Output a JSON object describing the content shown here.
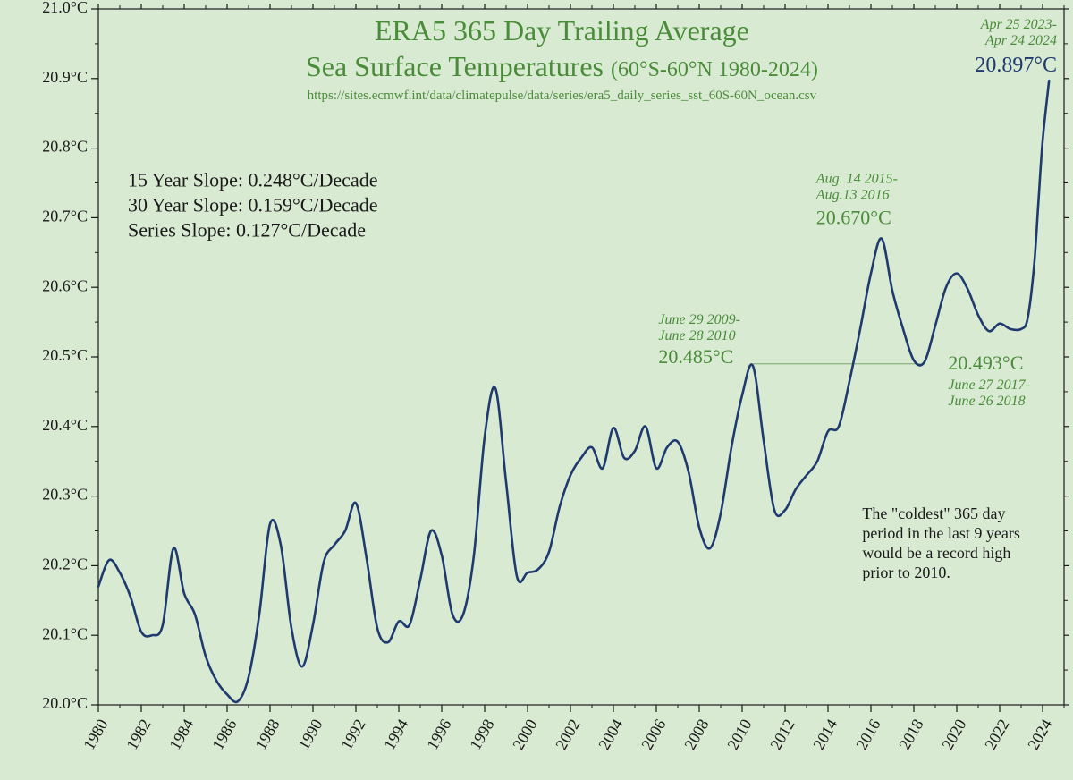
{
  "chart": {
    "type": "line",
    "background_color": "#d9ead3",
    "plot_border_color": "#1a1a1a",
    "plot_border_width": 1.2,
    "line_color": "#1f3a6e",
    "line_width": 2.6,
    "title_color": "#4a8c3a",
    "text_dark": "#1a1a1a",
    "annotation_color": "#4a8c3a",
    "latest_value_color": "#1f3a6e",
    "thin_guide_color": "#6a9a5a",
    "tick_font_size": 18,
    "x_axis": {
      "min": 1980,
      "max": 2025,
      "ticks": [
        1980,
        1982,
        1984,
        1986,
        1988,
        1990,
        1992,
        1994,
        1996,
        1998,
        2000,
        2002,
        2004,
        2006,
        2008,
        2010,
        2012,
        2014,
        2016,
        2018,
        2020,
        2022,
        2024
      ],
      "tick_label_rotation": -60,
      "minor_step": 1
    },
    "y_axis": {
      "min": 20.0,
      "max": 21.0,
      "ticks": [
        20.0,
        20.1,
        20.2,
        20.3,
        20.4,
        20.5,
        20.6,
        20.7,
        20.8,
        20.9,
        21.0
      ],
      "tick_labels": [
        "20.0°C",
        "20.1°C",
        "20.2°C",
        "20.3°C",
        "20.4°C",
        "20.5°C",
        "20.6°C",
        "20.7°C",
        "20.8°C",
        "20.9°C",
        "21.0°C"
      ]
    },
    "title_line1": "ERA5 365 Day Trailing Average",
    "title_line2": "Sea Surface Temperatures",
    "title_sub": "(60°S-60°N 1980-2024)",
    "source_url": "https://sites.ecmwf.int/data/climatepulse/data/series/era5_daily_series_sst_60S-60N_ocean.csv",
    "title_font_size": 32,
    "subtitle_font_size": 24,
    "source_font_size": 15,
    "slopes": {
      "line1": "15 Year Slope: 0.248°C/Decade",
      "line2": "30 Year Slope: 0.159°C/Decade",
      "line3": "Series  Slope: 0.127°C/Decade",
      "font_size": 22
    },
    "annotations": {
      "a2010": {
        "date_range": "June 29 2009-\nJune 28 2010",
        "value": "20.485°C",
        "font_size_date": 16,
        "font_size_val": 22
      },
      "a2016": {
        "date_range": "Aug. 14 2015-\nAug.13 2016",
        "value": "20.670°C",
        "font_size_date": 16,
        "font_size_val": 22
      },
      "a2018": {
        "date_range": "June 27 2017-\nJune 26 2018",
        "value": "20.493°C",
        "font_size_date": 16,
        "font_size_val": 22
      },
      "latest": {
        "date_range": "Apr 25 2023-\nApr 24 2024",
        "value": "20.897°C",
        "font_size_date": 16,
        "font_size_val": 24
      }
    },
    "note": {
      "text": "The \"coldest\" 365 day\nperiod in the last 9 years\nwould be a record high\nprior to 2010.",
      "font_size": 18
    },
    "guide_line": {
      "from_year": 2010.5,
      "to_year": 2018.5,
      "y": 20.49
    },
    "series": [
      [
        1980.0,
        20.17
      ],
      [
        1980.5,
        20.208
      ],
      [
        1981.0,
        20.19
      ],
      [
        1981.5,
        20.155
      ],
      [
        1982.0,
        20.105
      ],
      [
        1982.5,
        20.1
      ],
      [
        1983.0,
        20.115
      ],
      [
        1983.5,
        20.225
      ],
      [
        1984.0,
        20.16
      ],
      [
        1984.5,
        20.13
      ],
      [
        1985.0,
        20.07
      ],
      [
        1985.5,
        20.035
      ],
      [
        1986.0,
        20.015
      ],
      [
        1986.5,
        20.005
      ],
      [
        1987.0,
        20.04
      ],
      [
        1987.5,
        20.13
      ],
      [
        1988.0,
        20.26
      ],
      [
        1988.5,
        20.23
      ],
      [
        1989.0,
        20.11
      ],
      [
        1989.5,
        20.055
      ],
      [
        1990.0,
        20.115
      ],
      [
        1990.5,
        20.205
      ],
      [
        1991.0,
        20.23
      ],
      [
        1991.5,
        20.25
      ],
      [
        1992.0,
        20.29
      ],
      [
        1992.5,
        20.21
      ],
      [
        1993.0,
        20.11
      ],
      [
        1993.5,
        20.09
      ],
      [
        1994.0,
        20.12
      ],
      [
        1994.5,
        20.115
      ],
      [
        1995.0,
        20.18
      ],
      [
        1995.5,
        20.25
      ],
      [
        1996.0,
        20.215
      ],
      [
        1996.5,
        20.13
      ],
      [
        1997.0,
        20.13
      ],
      [
        1997.5,
        20.215
      ],
      [
        1998.0,
        20.385
      ],
      [
        1998.5,
        20.455
      ],
      [
        1999.0,
        20.32
      ],
      [
        1999.5,
        20.185
      ],
      [
        2000.0,
        20.19
      ],
      [
        2000.5,
        20.195
      ],
      [
        2001.0,
        20.22
      ],
      [
        2001.5,
        20.285
      ],
      [
        2002.0,
        20.33
      ],
      [
        2002.5,
        20.355
      ],
      [
        2003.0,
        20.37
      ],
      [
        2003.5,
        20.34
      ],
      [
        2004.0,
        20.398
      ],
      [
        2004.5,
        20.355
      ],
      [
        2005.0,
        20.365
      ],
      [
        2005.5,
        20.4
      ],
      [
        2006.0,
        20.34
      ],
      [
        2006.5,
        20.37
      ],
      [
        2007.0,
        20.378
      ],
      [
        2007.5,
        20.335
      ],
      [
        2008.0,
        20.255
      ],
      [
        2008.5,
        20.225
      ],
      [
        2009.0,
        20.275
      ],
      [
        2009.5,
        20.37
      ],
      [
        2010.0,
        20.445
      ],
      [
        2010.5,
        20.487
      ],
      [
        2011.0,
        20.38
      ],
      [
        2011.5,
        20.28
      ],
      [
        2012.0,
        20.28
      ],
      [
        2012.5,
        20.31
      ],
      [
        2013.0,
        20.33
      ],
      [
        2013.5,
        20.35
      ],
      [
        2014.0,
        20.393
      ],
      [
        2014.5,
        20.4
      ],
      [
        2015.0,
        20.465
      ],
      [
        2015.5,
        20.54
      ],
      [
        2016.0,
        20.62
      ],
      [
        2016.5,
        20.67
      ],
      [
        2017.0,
        20.595
      ],
      [
        2017.5,
        20.54
      ],
      [
        2018.0,
        20.495
      ],
      [
        2018.5,
        20.493
      ],
      [
        2019.0,
        20.545
      ],
      [
        2019.5,
        20.6
      ],
      [
        2020.0,
        20.62
      ],
      [
        2020.5,
        20.598
      ],
      [
        2021.0,
        20.56
      ],
      [
        2021.5,
        20.537
      ],
      [
        2022.0,
        20.548
      ],
      [
        2022.5,
        20.54
      ],
      [
        2023.0,
        20.54
      ],
      [
        2023.3,
        20.555
      ],
      [
        2023.6,
        20.63
      ],
      [
        2023.8,
        20.72
      ],
      [
        2024.0,
        20.81
      ],
      [
        2024.3,
        20.897
      ]
    ]
  }
}
